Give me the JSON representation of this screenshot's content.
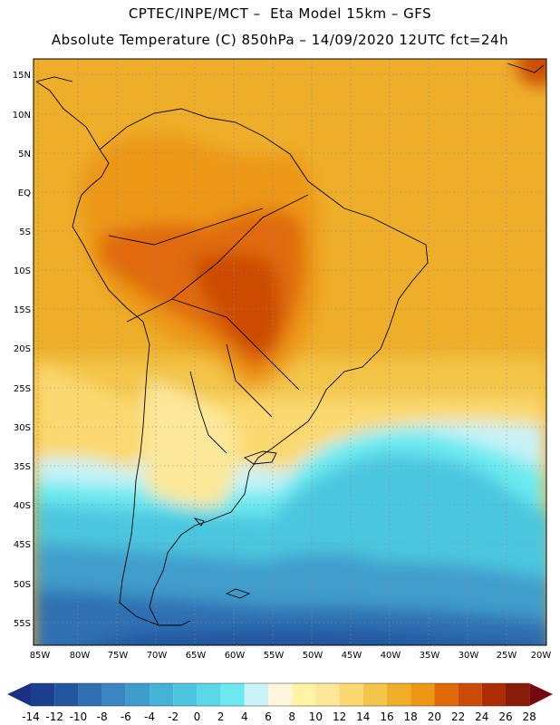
{
  "title_line1": "CPTEC/INPE/MCT –  Eta Model 15km – GFS",
  "title_line2": "Absolute Temperature (C) 850hPa – 14/09/2020 12UTC fct=24h",
  "lat_labels": [
    "15N",
    "10N",
    "5N",
    "EQ",
    "5S",
    "10S",
    "15S",
    "20S",
    "25S",
    "30S",
    "35S",
    "40S",
    "45S",
    "50S",
    "55S"
  ],
  "lon_labels": [
    "85W",
    "80W",
    "75W",
    "70W",
    "65W",
    "60W",
    "55W",
    "50W",
    "45W",
    "40W",
    "35W",
    "30W",
    "25W",
    "20W"
  ],
  "colorbar": {
    "labels": [
      "-14",
      "-12",
      "-10",
      "-8",
      "-6",
      "-4",
      "-2",
      "0",
      "2",
      "4",
      "6",
      "8",
      "10",
      "12",
      "14",
      "16",
      "18",
      "20",
      "22",
      "24",
      "26",
      "28"
    ],
    "colors": [
      "#1a3f8f",
      "#22559f",
      "#2f6fb2",
      "#3a86c2",
      "#3f9dcc",
      "#45b3d6",
      "#4cc6df",
      "#5ad8e6",
      "#6ceaf0",
      "#c9f3f8",
      "#fff6de",
      "#fff3a4",
      "#fde89a",
      "#fbd970",
      "#f3c54a",
      "#eeae2a",
      "#ec9713",
      "#e06a08",
      "#cc4b04",
      "#ac2d04",
      "#871c08"
    ],
    "under_color": "#1c2f82",
    "over_color": "#75090f"
  },
  "icons": {
    "left_arrow": "colorbar-under-triangle",
    "right_arrow": "colorbar-over-triangle"
  }
}
